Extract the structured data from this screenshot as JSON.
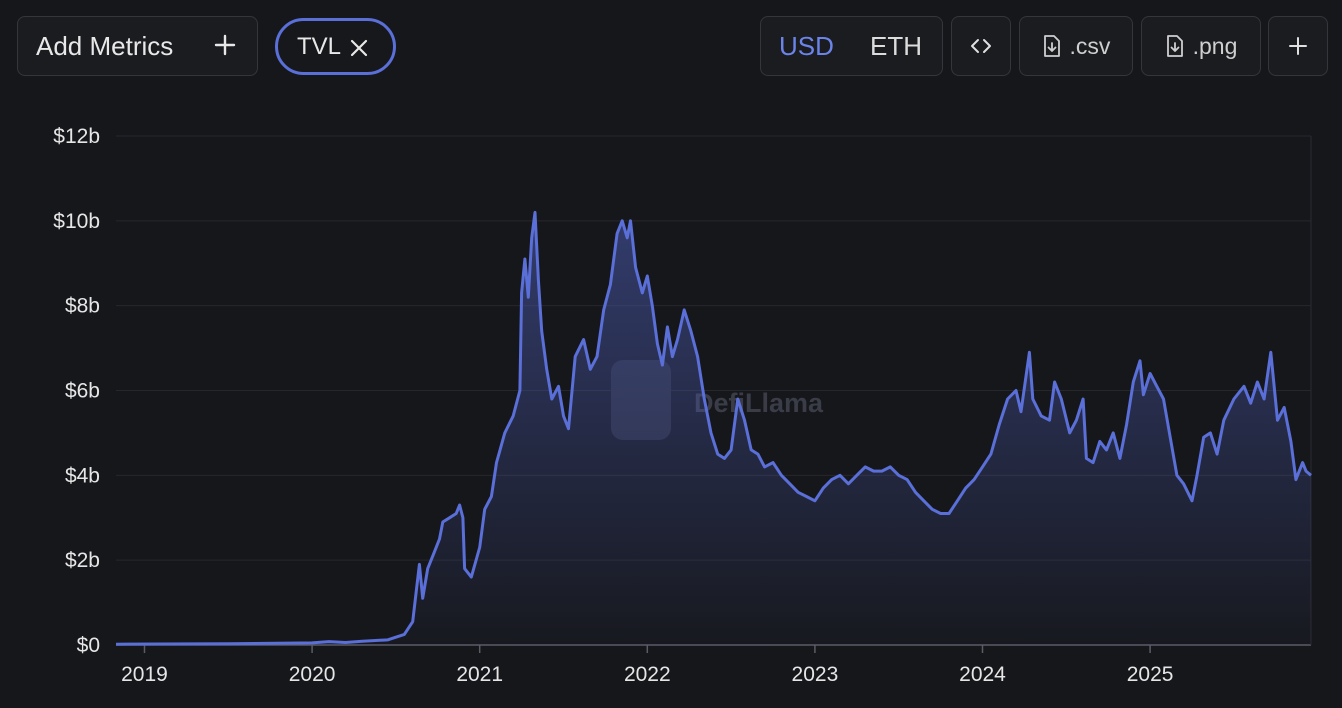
{
  "toolbar": {
    "add_metrics_label": "Add Metrics",
    "metric_chip_label": "TVL",
    "currency_usd": "USD",
    "currency_eth": "ETH",
    "csv_label": ".csv",
    "png_label": ".png",
    "selected_currency": "USD"
  },
  "watermark": "DefiLlama",
  "colors": {
    "background": "#16171b",
    "line": "#5a6fd8",
    "accent": "#6b84ea"
  },
  "chart_data": {
    "type": "area",
    "ylim": [
      0,
      12
    ],
    "xlim": [
      2018.83,
      2025.96
    ],
    "y_ticks": [
      {
        "value": 0,
        "label": "$0"
      },
      {
        "value": 2,
        "label": "$2b"
      },
      {
        "value": 4,
        "label": "$4b"
      },
      {
        "value": 6,
        "label": "$6b"
      },
      {
        "value": 8,
        "label": "$8b"
      },
      {
        "value": 10,
        "label": "$10b"
      },
      {
        "value": 12,
        "label": "$12b"
      }
    ],
    "x_ticks": [
      "2019",
      "2020",
      "2021",
      "2022",
      "2023",
      "2024",
      "2025"
    ],
    "grid": true,
    "series": [
      {
        "points": [
          [
            2018.83,
            0.02
          ],
          [
            2019.5,
            0.03
          ],
          [
            2020.0,
            0.05
          ],
          [
            2020.1,
            0.08
          ],
          [
            2020.2,
            0.06
          ],
          [
            2020.3,
            0.09
          ],
          [
            2020.45,
            0.12
          ],
          [
            2020.55,
            0.25
          ],
          [
            2020.6,
            0.55
          ],
          [
            2020.64,
            1.9
          ],
          [
            2020.66,
            1.1
          ],
          [
            2020.69,
            1.8
          ],
          [
            2020.72,
            2.1
          ],
          [
            2020.76,
            2.5
          ],
          [
            2020.78,
            2.9
          ],
          [
            2020.82,
            3.0
          ],
          [
            2020.86,
            3.1
          ],
          [
            2020.88,
            3.3
          ],
          [
            2020.9,
            3.0
          ],
          [
            2020.91,
            1.8
          ],
          [
            2020.95,
            1.6
          ],
          [
            2021.0,
            2.3
          ],
          [
            2021.03,
            3.2
          ],
          [
            2021.07,
            3.5
          ],
          [
            2021.1,
            4.3
          ],
          [
            2021.15,
            5.0
          ],
          [
            2021.2,
            5.4
          ],
          [
            2021.24,
            6.0
          ],
          [
            2021.25,
            8.3
          ],
          [
            2021.27,
            9.1
          ],
          [
            2021.29,
            8.2
          ],
          [
            2021.31,
            9.6
          ],
          [
            2021.33,
            10.2
          ],
          [
            2021.35,
            8.6
          ],
          [
            2021.37,
            7.4
          ],
          [
            2021.4,
            6.5
          ],
          [
            2021.43,
            5.8
          ],
          [
            2021.47,
            6.1
          ],
          [
            2021.5,
            5.4
          ],
          [
            2021.53,
            5.1
          ],
          [
            2021.57,
            6.8
          ],
          [
            2021.62,
            7.2
          ],
          [
            2021.66,
            6.5
          ],
          [
            2021.7,
            6.8
          ],
          [
            2021.74,
            7.9
          ],
          [
            2021.78,
            8.5
          ],
          [
            2021.82,
            9.7
          ],
          [
            2021.85,
            10.0
          ],
          [
            2021.88,
            9.6
          ],
          [
            2021.9,
            10.0
          ],
          [
            2021.93,
            8.9
          ],
          [
            2021.97,
            8.3
          ],
          [
            2022.0,
            8.7
          ],
          [
            2022.03,
            8.0
          ],
          [
            2022.06,
            7.1
          ],
          [
            2022.09,
            6.6
          ],
          [
            2022.12,
            7.5
          ],
          [
            2022.15,
            6.8
          ],
          [
            2022.18,
            7.2
          ],
          [
            2022.22,
            7.9
          ],
          [
            2022.26,
            7.4
          ],
          [
            2022.3,
            6.8
          ],
          [
            2022.34,
            5.8
          ],
          [
            2022.38,
            5.0
          ],
          [
            2022.42,
            4.5
          ],
          [
            2022.46,
            4.4
          ],
          [
            2022.5,
            4.6
          ],
          [
            2022.54,
            5.8
          ],
          [
            2022.58,
            5.3
          ],
          [
            2022.62,
            4.6
          ],
          [
            2022.66,
            4.5
          ],
          [
            2022.7,
            4.2
          ],
          [
            2022.75,
            4.3
          ],
          [
            2022.8,
            4.0
          ],
          [
            2022.85,
            3.8
          ],
          [
            2022.9,
            3.6
          ],
          [
            2022.95,
            3.5
          ],
          [
            2023.0,
            3.4
          ],
          [
            2023.05,
            3.7
          ],
          [
            2023.1,
            3.9
          ],
          [
            2023.15,
            4.0
          ],
          [
            2023.2,
            3.8
          ],
          [
            2023.25,
            4.0
          ],
          [
            2023.3,
            4.2
          ],
          [
            2023.35,
            4.1
          ],
          [
            2023.4,
            4.1
          ],
          [
            2023.45,
            4.2
          ],
          [
            2023.5,
            4.0
          ],
          [
            2023.55,
            3.9
          ],
          [
            2023.6,
            3.6
          ],
          [
            2023.65,
            3.4
          ],
          [
            2023.7,
            3.2
          ],
          [
            2023.75,
            3.1
          ],
          [
            2023.8,
            3.1
          ],
          [
            2023.85,
            3.4
          ],
          [
            2023.9,
            3.7
          ],
          [
            2023.95,
            3.9
          ],
          [
            2024.0,
            4.2
          ],
          [
            2024.05,
            4.5
          ],
          [
            2024.1,
            5.2
          ],
          [
            2024.15,
            5.8
          ],
          [
            2024.2,
            6.0
          ],
          [
            2024.23,
            5.5
          ],
          [
            2024.28,
            6.9
          ],
          [
            2024.3,
            5.8
          ],
          [
            2024.35,
            5.4
          ],
          [
            2024.4,
            5.3
          ],
          [
            2024.43,
            6.2
          ],
          [
            2024.47,
            5.8
          ],
          [
            2024.52,
            5.0
          ],
          [
            2024.56,
            5.3
          ],
          [
            2024.6,
            5.8
          ],
          [
            2024.62,
            4.4
          ],
          [
            2024.66,
            4.3
          ],
          [
            2024.7,
            4.8
          ],
          [
            2024.74,
            4.6
          ],
          [
            2024.78,
            5.0
          ],
          [
            2024.82,
            4.4
          ],
          [
            2024.86,
            5.2
          ],
          [
            2024.9,
            6.2
          ],
          [
            2024.94,
            6.7
          ],
          [
            2024.96,
            5.9
          ],
          [
            2025.0,
            6.4
          ],
          [
            2025.04,
            6.1
          ],
          [
            2025.08,
            5.8
          ],
          [
            2025.12,
            4.9
          ],
          [
            2025.16,
            4.0
          ],
          [
            2025.2,
            3.8
          ],
          [
            2025.25,
            3.4
          ],
          [
            2025.28,
            4.0
          ],
          [
            2025.32,
            4.9
          ],
          [
            2025.36,
            5.0
          ],
          [
            2025.4,
            4.5
          ],
          [
            2025.44,
            5.3
          ],
          [
            2025.5,
            5.8
          ],
          [
            2025.56,
            6.1
          ],
          [
            2025.6,
            5.7
          ],
          [
            2025.64,
            6.2
          ],
          [
            2025.68,
            5.8
          ],
          [
            2025.72,
            6.9
          ],
          [
            2025.76,
            5.3
          ],
          [
            2025.8,
            5.6
          ],
          [
            2025.84,
            4.8
          ],
          [
            2025.87,
            3.9
          ],
          [
            2025.91,
            4.3
          ],
          [
            2025.93,
            4.1
          ],
          [
            2025.96,
            4.0
          ]
        ]
      }
    ]
  }
}
